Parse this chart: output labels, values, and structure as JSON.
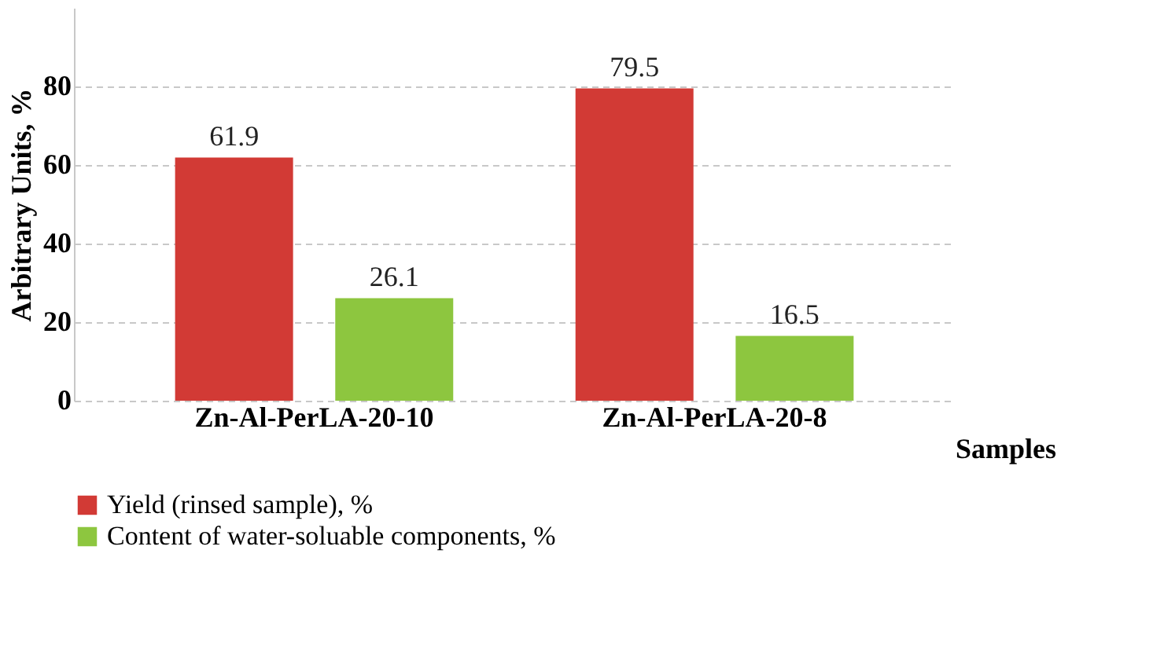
{
  "chart_data": {
    "type": "bar",
    "xlabel": "Samples",
    "ylabel": "Arbitrary Units, %",
    "categories": [
      "Zn-Al-PerLA-20-10",
      "Zn-Al-PerLA-20-8"
    ],
    "series": [
      {
        "name": "Yield (rinsed sample), %",
        "color": "#d23a35",
        "values": [
          61.9,
          79.5
        ]
      },
      {
        "name": "Content of water-soluable components, %",
        "color": "#8dc63f",
        "values": [
          26.1,
          16.5
        ]
      }
    ],
    "ylim": [
      0,
      100
    ],
    "yticks": [
      0,
      20,
      40,
      60,
      80
    ],
    "grid": "y",
    "legend": "bottom",
    "data_labels": true
  }
}
